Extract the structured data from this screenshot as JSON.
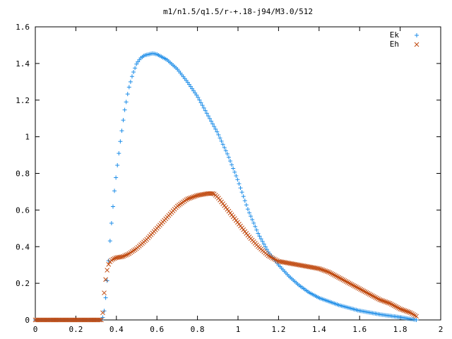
{
  "chart_data": {
    "type": "scatter",
    "title": "m1/n1.5/q1.5/r-+.18-j94/M3.0/512",
    "xlabel": "",
    "ylabel": "",
    "xlim": [
      0,
      2
    ],
    "ylim": [
      0,
      1.6
    ],
    "xticks": [
      "0",
      "0.2",
      "0.4",
      "0.6",
      "0.8",
      "1",
      "1.2",
      "1.4",
      "1.6",
      "1.8",
      "2"
    ],
    "yticks": [
      "0",
      "0.2",
      "0.4",
      "0.6",
      "0.8",
      "1",
      "1.2",
      "1.4",
      "1.6"
    ],
    "legend_position": "top-right",
    "grid": false,
    "series": [
      {
        "name": "Ek",
        "marker": "plus",
        "color": "#1f8ee8",
        "x": [
          0.0,
          0.1,
          0.2,
          0.3,
          0.33,
          0.34,
          0.35,
          0.36,
          0.37,
          0.38,
          0.39,
          0.4,
          0.42,
          0.44,
          0.46,
          0.48,
          0.5,
          0.52,
          0.54,
          0.56,
          0.58,
          0.6,
          0.65,
          0.7,
          0.75,
          0.8,
          0.85,
          0.9,
          0.95,
          1.0,
          1.05,
          1.1,
          1.15,
          1.2,
          1.25,
          1.3,
          1.35,
          1.4,
          1.45,
          1.5,
          1.6,
          1.7,
          1.8,
          1.88
        ],
        "y": [
          0.0,
          0.0,
          0.0,
          0.0,
          0.0,
          0.05,
          0.15,
          0.3,
          0.45,
          0.58,
          0.7,
          0.8,
          0.98,
          1.14,
          1.26,
          1.34,
          1.4,
          1.43,
          1.445,
          1.45,
          1.455,
          1.45,
          1.42,
          1.37,
          1.3,
          1.22,
          1.12,
          1.02,
          0.9,
          0.76,
          0.6,
          0.47,
          0.37,
          0.3,
          0.24,
          0.19,
          0.15,
          0.12,
          0.1,
          0.08,
          0.05,
          0.03,
          0.015,
          0.0
        ]
      },
      {
        "name": "Eh",
        "marker": "cross",
        "color": "#c04a10",
        "x": [
          0.0,
          0.1,
          0.2,
          0.3,
          0.33,
          0.34,
          0.35,
          0.36,
          0.37,
          0.38,
          0.4,
          0.43,
          0.46,
          0.5,
          0.55,
          0.6,
          0.65,
          0.7,
          0.75,
          0.8,
          0.85,
          0.88,
          0.9,
          0.95,
          1.0,
          1.05,
          1.1,
          1.15,
          1.2,
          1.25,
          1.3,
          1.35,
          1.4,
          1.45,
          1.5,
          1.55,
          1.6,
          1.65,
          1.7,
          1.75,
          1.8,
          1.85,
          1.88
        ],
        "y": [
          0.0,
          0.0,
          0.0,
          0.0,
          0.0,
          0.15,
          0.25,
          0.3,
          0.32,
          0.33,
          0.34,
          0.345,
          0.36,
          0.39,
          0.44,
          0.5,
          0.56,
          0.62,
          0.66,
          0.68,
          0.69,
          0.69,
          0.67,
          0.6,
          0.53,
          0.46,
          0.4,
          0.35,
          0.32,
          0.31,
          0.3,
          0.29,
          0.28,
          0.26,
          0.23,
          0.2,
          0.17,
          0.14,
          0.11,
          0.09,
          0.06,
          0.04,
          0.02
        ]
      }
    ]
  }
}
